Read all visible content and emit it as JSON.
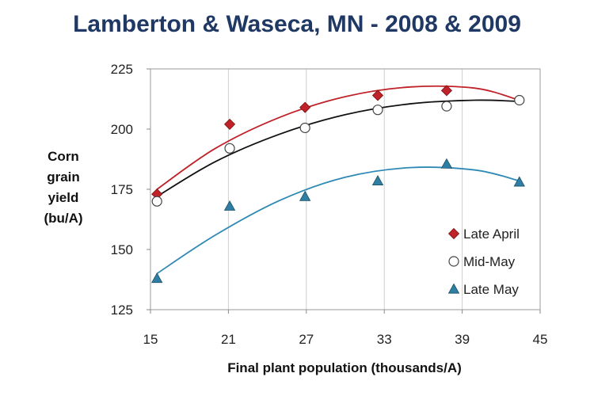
{
  "page": {
    "title": "Lamberton & Waseca, MN - 2008 & 2009"
  },
  "chart_data": {
    "type": "scatter",
    "title": "Lamberton & Waseca, MN - 2008 & 2009",
    "xlabel": "Final plant population (thousands/A)",
    "ylabel_lines": [
      "Corn",
      "grain",
      "yield",
      "(bu/A)"
    ],
    "xlim": [
      15,
      45
    ],
    "ylim": [
      125,
      225
    ],
    "xticks": [
      15,
      21,
      27,
      33,
      39,
      45
    ],
    "yticks": [
      125,
      150,
      175,
      200,
      225
    ],
    "grid": "vertical",
    "legend_position": "right",
    "series": [
      {
        "name": "Late April",
        "marker": "diamond",
        "color": "#c0222a",
        "points": [
          [
            15.5,
            173
          ],
          [
            21.1,
            202
          ],
          [
            26.9,
            209
          ],
          [
            32.5,
            214
          ],
          [
            37.8,
            216
          ]
        ],
        "fit": [
          [
            15.5,
            175
          ],
          [
            20,
            192
          ],
          [
            25,
            205
          ],
          [
            30,
            213.5
          ],
          [
            35,
            217.5
          ],
          [
            40,
            217
          ],
          [
            43.4,
            212
          ]
        ]
      },
      {
        "name": "Mid-May",
        "marker": "circle",
        "color": "#ffffff",
        "points": [
          [
            15.5,
            170
          ],
          [
            21.1,
            192
          ],
          [
            26.9,
            200.5
          ],
          [
            32.5,
            208
          ],
          [
            37.8,
            209.5
          ],
          [
            43.4,
            212
          ]
        ],
        "fit": [
          [
            15.5,
            172
          ],
          [
            20,
            186.5
          ],
          [
            25,
            198
          ],
          [
            30,
            206
          ],
          [
            35,
            210.5
          ],
          [
            40,
            212
          ],
          [
            43.4,
            211.5
          ]
        ]
      },
      {
        "name": "Late May",
        "marker": "triangle",
        "color": "#2e7fa3",
        "points": [
          [
            15.5,
            138
          ],
          [
            21.1,
            168
          ],
          [
            26.9,
            172
          ],
          [
            32.5,
            178.5
          ],
          [
            37.8,
            185.5
          ],
          [
            43.4,
            178
          ]
        ],
        "fit": [
          [
            15.5,
            140
          ],
          [
            20,
            156
          ],
          [
            25,
            170.5
          ],
          [
            30,
            180
          ],
          [
            35,
            184
          ],
          [
            40,
            183
          ],
          [
            43.4,
            178.5
          ]
        ]
      }
    ]
  }
}
